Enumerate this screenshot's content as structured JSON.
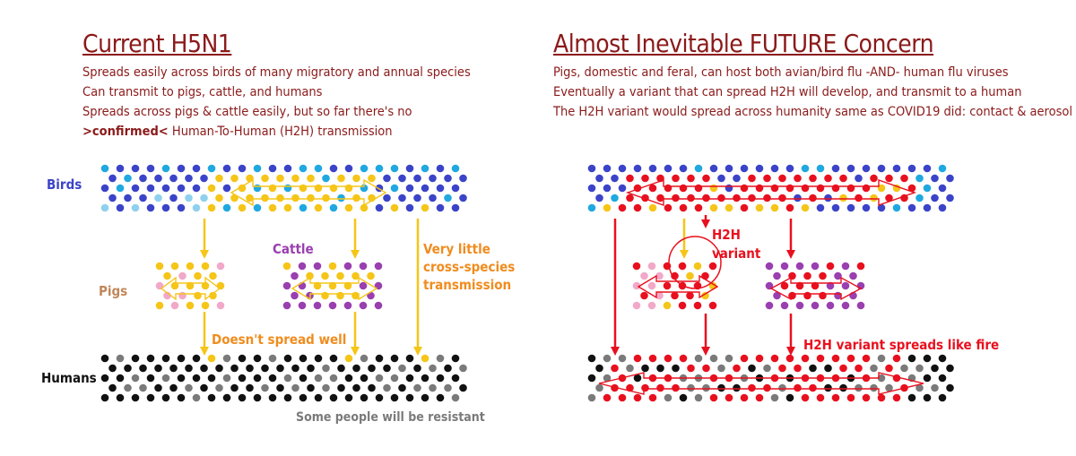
{
  "left": {
    "title": "Current H5N1",
    "lines": [
      "Spreads easily across birds of many migratory and annual species",
      "Can transmit to pigs, cattle, and humans",
      "Spreads across pigs & cattle easily, but so far there's no"
    ],
    "confirmed_word": ">confirmed<",
    "confirmed_rest": " Human-To-Human (H2H) transmission",
    "labels": {
      "birds": "Birds",
      "pigs": "Pigs",
      "cattle": "Cattle",
      "humans": "Humans",
      "very_little_1": "Very little",
      "very_little_2": "cross-species",
      "very_little_3": "transmission",
      "doesnt_spread": "Doesn't spread well",
      "resistant": "Some people will be resistant"
    }
  },
  "right": {
    "title": "Almost Inevitable FUTURE Concern",
    "lines": [
      "Pigs, domestic and feral, can host both avian/bird flu -AND- human flu viruses",
      "Eventually a variant that can spread H2H will develop, and transmit to a human",
      "The H2H variant would spread across humanity same as COVID19 did: contact & aerosol"
    ],
    "labels": {
      "h2h_1": "H2H",
      "h2h_2": "variant",
      "spreads_fire": "H2H variant spreads like fire"
    }
  },
  "colors": {
    "title": "#8b1a1a",
    "birds_label": "#3b43c8",
    "pigs_label": "#c0875a",
    "cattle_label": "#9a3fb0",
    "orange_label": "#f08c1e",
    "red": "#e8101e",
    "yellow": "#f5c518",
    "grey": "#7a7a7a"
  }
}
